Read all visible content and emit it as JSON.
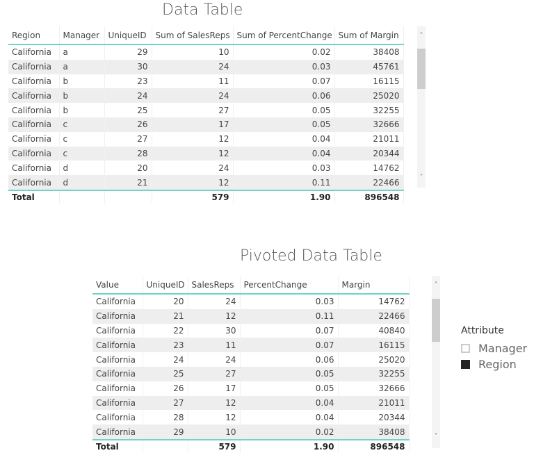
{
  "table1": {
    "title": "Data Table",
    "columns": [
      "Region",
      "Manager",
      "UniqueID",
      "Sum of SalesReps",
      "Sum of PercentChange",
      "Sum of Margin"
    ],
    "rows": [
      [
        "California",
        "a",
        "29",
        "10",
        "0.02",
        "38408"
      ],
      [
        "California",
        "a",
        "30",
        "24",
        "0.03",
        "45761"
      ],
      [
        "California",
        "b",
        "23",
        "11",
        "0.07",
        "16115"
      ],
      [
        "California",
        "b",
        "24",
        "24",
        "0.06",
        "25020"
      ],
      [
        "California",
        "b",
        "25",
        "27",
        "0.05",
        "32255"
      ],
      [
        "California",
        "c",
        "26",
        "17",
        "0.05",
        "32666"
      ],
      [
        "California",
        "c",
        "27",
        "12",
        "0.04",
        "21011"
      ],
      [
        "California",
        "c",
        "28",
        "12",
        "0.04",
        "20344"
      ],
      [
        "California",
        "d",
        "20",
        "24",
        "0.03",
        "14762"
      ],
      [
        "California",
        "d",
        "21",
        "12",
        "0.11",
        "22466"
      ]
    ],
    "total": [
      "Total",
      "",
      "",
      "579",
      "1.90",
      "896548"
    ]
  },
  "table2": {
    "title": "Pivoted Data Table",
    "columns": [
      "Value",
      "UniqueID",
      "SalesReps",
      "PercentChange",
      "Margin"
    ],
    "rows": [
      [
        "California",
        "20",
        "24",
        "0.03",
        "14762"
      ],
      [
        "California",
        "21",
        "12",
        "0.11",
        "22466"
      ],
      [
        "California",
        "22",
        "30",
        "0.07",
        "40840"
      ],
      [
        "California",
        "23",
        "11",
        "0.07",
        "16115"
      ],
      [
        "California",
        "24",
        "24",
        "0.06",
        "25020"
      ],
      [
        "California",
        "25",
        "27",
        "0.05",
        "32255"
      ],
      [
        "California",
        "26",
        "17",
        "0.05",
        "32666"
      ],
      [
        "California",
        "27",
        "12",
        "0.04",
        "21011"
      ],
      [
        "California",
        "28",
        "12",
        "0.04",
        "20344"
      ],
      [
        "California",
        "29",
        "10",
        "0.02",
        "38408"
      ]
    ],
    "total": [
      "Total",
      "",
      "579",
      "1.90",
      "896548"
    ]
  },
  "legend": {
    "title": "Attribute",
    "items": [
      {
        "label": "Manager",
        "color": "#ffffff",
        "border": "#cccccc"
      },
      {
        "label": "Region",
        "color": "#222222",
        "border": "#222222"
      }
    ]
  },
  "scroll": {
    "up": "˄",
    "down": "˅"
  },
  "accent": "#6fd3c9"
}
